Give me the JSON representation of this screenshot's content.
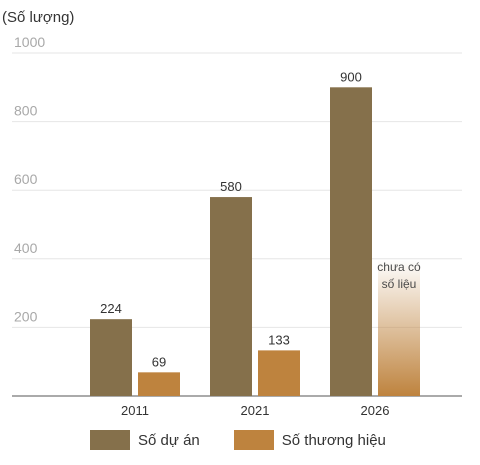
{
  "chart_data": {
    "type": "bar",
    "unit_label": "(Số lượng)",
    "categories": [
      "2011",
      "2021",
      "2026"
    ],
    "series": [
      {
        "name": "Số dự án",
        "values": [
          224,
          580,
          900
        ],
        "color": "#85704b"
      },
      {
        "name": "Số thương hiệu",
        "values": [
          69,
          133,
          null
        ],
        "color": "#be833e"
      }
    ],
    "missing_note": [
      "chưa có",
      "số liệu"
    ],
    "ylim": [
      0,
      1000
    ],
    "yticks": [
      "1000",
      "800",
      "600",
      "400",
      "200"
    ],
    "grid": true,
    "legend_position": "bottom"
  }
}
